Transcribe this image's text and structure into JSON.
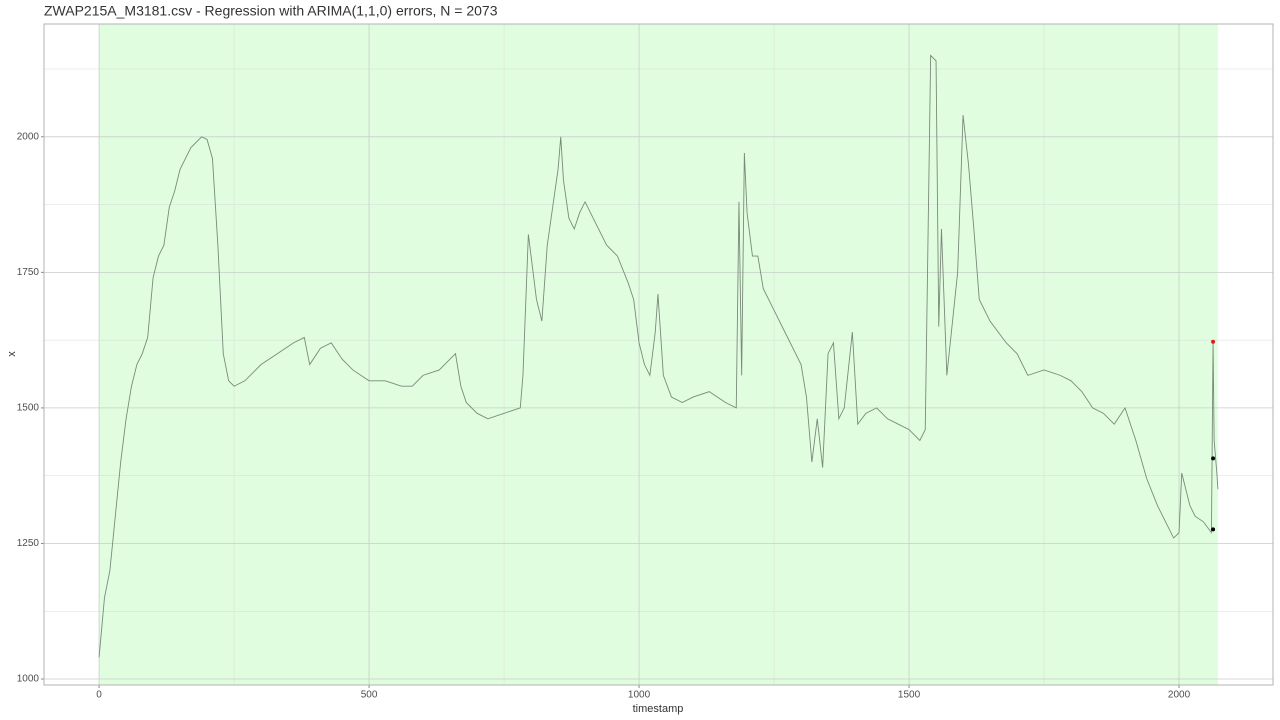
{
  "chart_data": {
    "type": "line",
    "title": "ZWAP215A_M3181.csv - Regression with ARIMA(1,1,0) errors, N = 2073",
    "x_label": "timestamp",
    "y_label": "x",
    "xlim": [
      -102,
      2174
    ],
    "ylim": [
      989,
      2208
    ],
    "xticks": [
      0,
      500,
      1000,
      1500,
      2000
    ],
    "yticks": [
      1000,
      1250,
      1500,
      1750,
      2000
    ],
    "grid": true,
    "highlight": {
      "x": [
        0,
        2072
      ],
      "color": "#e0fde0"
    },
    "series": [
      {
        "color": "#7a8a7a",
        "x": [
          0,
          10,
          20,
          30,
          40,
          50,
          60,
          70,
          80,
          90,
          100,
          110,
          120,
          130,
          140,
          150,
          160,
          170,
          180,
          190,
          200,
          210,
          220,
          230,
          240,
          250,
          270,
          300,
          330,
          360,
          380,
          390,
          410,
          430,
          450,
          470,
          500,
          530,
          560,
          580,
          600,
          630,
          650,
          660,
          670,
          680,
          700,
          720,
          750,
          780,
          785,
          795,
          810,
          820,
          830,
          850,
          855,
          860,
          870,
          880,
          890,
          900,
          920,
          940,
          960,
          980,
          990,
          1000,
          1010,
          1020,
          1030,
          1035,
          1045,
          1060,
          1080,
          1100,
          1130,
          1160,
          1180,
          1185,
          1190,
          1195,
          1200,
          1210,
          1220,
          1230,
          1250,
          1270,
          1290,
          1300,
          1310,
          1320,
          1330,
          1340,
          1350,
          1360,
          1370,
          1380,
          1395,
          1405,
          1420,
          1440,
          1460,
          1480,
          1500,
          1520,
          1530,
          1540,
          1550,
          1555,
          1560,
          1570,
          1590,
          1600,
          1610,
          1620,
          1630,
          1650,
          1680,
          1700,
          1720,
          1750,
          1780,
          1800,
          1820,
          1840,
          1860,
          1880,
          1900,
          1920,
          1940,
          1960,
          1980,
          1990,
          2000,
          2005,
          2020,
          2030,
          2045,
          2060,
          2063,
          2065,
          2070,
          2072
        ],
        "values": [
          1040,
          1150,
          1200,
          1300,
          1400,
          1480,
          1540,
          1580,
          1600,
          1630,
          1740,
          1780,
          1800,
          1870,
          1900,
          1940,
          1960,
          1980,
          1990,
          2000,
          1995,
          1960,
          1800,
          1600,
          1550,
          1540,
          1550,
          1580,
          1600,
          1620,
          1630,
          1580,
          1610,
          1620,
          1590,
          1570,
          1550,
          1550,
          1540,
          1540,
          1560,
          1570,
          1590,
          1600,
          1540,
          1510,
          1490,
          1480,
          1490,
          1500,
          1560,
          1820,
          1700,
          1660,
          1800,
          1940,
          2000,
          1920,
          1850,
          1830,
          1860,
          1880,
          1840,
          1800,
          1780,
          1730,
          1700,
          1620,
          1580,
          1560,
          1640,
          1710,
          1560,
          1520,
          1510,
          1520,
          1530,
          1510,
          1500,
          1880,
          1560,
          1970,
          1860,
          1780,
          1780,
          1720,
          1680,
          1640,
          1600,
          1580,
          1520,
          1400,
          1480,
          1390,
          1600,
          1620,
          1480,
          1500,
          1640,
          1470,
          1490,
          1500,
          1480,
          1470,
          1460,
          1440,
          1460,
          2150,
          2140,
          1650,
          1830,
          1560,
          1750,
          2040,
          1950,
          1830,
          1700,
          1660,
          1620,
          1600,
          1560,
          1570,
          1560,
          1550,
          1530,
          1500,
          1490,
          1470,
          1500,
          1440,
          1370,
          1320,
          1280,
          1260,
          1270,
          1380,
          1320,
          1300,
          1290,
          1270,
          1622,
          1440,
          1380,
          1350
        ]
      }
    ],
    "points": {
      "x": [
        2063,
        2063,
        2063
      ],
      "values": [
        1622,
        1407,
        1276
      ],
      "colors": [
        "#e41a1c",
        "#000000",
        "#000000"
      ]
    }
  }
}
